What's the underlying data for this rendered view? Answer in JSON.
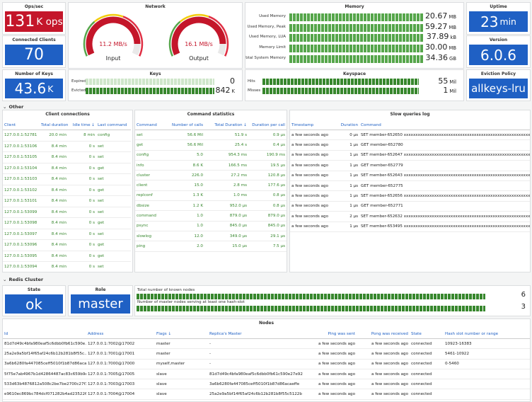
{
  "panels": {
    "ops": {
      "title": "Ops/sec",
      "value": "131",
      "unit": "K ops"
    },
    "clients": {
      "title": "Connected Clients",
      "value": "70"
    },
    "network": {
      "title": "Network",
      "gauges": [
        {
          "value": "11.2 MB/s",
          "label": "Input"
        },
        {
          "value": "16.1 MB/s",
          "label": "Output"
        }
      ]
    },
    "memory": {
      "title": "Memory",
      "rows": [
        {
          "label": "Used Memory",
          "value": "20.67",
          "unit": "MB"
        },
        {
          "label": "Used Memory, Peak",
          "value": "59.27",
          "unit": "MB"
        },
        {
          "label": "Used Memory, LUA",
          "value": "37.89",
          "unit": "kB"
        },
        {
          "label": "Memory Limit",
          "value": "30.00",
          "unit": "MB"
        },
        {
          "label": "Total System Memory",
          "value": "34.36",
          "unit": "GB"
        }
      ]
    },
    "uptime": {
      "title": "Uptime",
      "value": "23",
      "unit": "min"
    },
    "version": {
      "title": "Version",
      "value": "6.0.6"
    },
    "keys_count": {
      "title": "Number of Keys",
      "value": "43.6",
      "unit": "K"
    },
    "keys": {
      "title": "Keys",
      "rows": [
        {
          "label": "Expired",
          "value": "0"
        },
        {
          "label": "Evicted",
          "value": "842",
          "unit": "K"
        }
      ]
    },
    "keyspace": {
      "title": "Keyspace",
      "rows": [
        {
          "label": "Hits",
          "value": "55",
          "unit": "Mil"
        },
        {
          "label": "Misses",
          "value": "1",
          "unit": "Mil"
        }
      ]
    },
    "eviction": {
      "title": "Eviction Policy",
      "value": "allkeys-lru"
    },
    "state": {
      "title": "State",
      "value": "ok"
    },
    "role": {
      "title": "Role",
      "value": "master"
    },
    "cluster": {
      "rows": [
        {
          "label": "Total number of known nodes",
          "value": "6"
        },
        {
          "label": "Number of master nodes serving at least one hash-slot",
          "value": "3"
        }
      ]
    }
  },
  "sections": [
    "Other",
    "Redis Cluster"
  ],
  "tables": {
    "clients_table": {
      "title": "Client connections",
      "columns": [
        "Client",
        "Total duration",
        "Idle time",
        "Last command"
      ],
      "rows": [
        [
          "127.0.0.1:52781",
          "20.0 min",
          "8 min",
          "config"
        ],
        [
          "127.0.0.1:53106",
          "8.4 min",
          "0 s",
          "set"
        ],
        [
          "127.0.0.1:53105",
          "8.4 min",
          "0 s",
          "set"
        ],
        [
          "127.0.0.1:53104",
          "8.4 min",
          "0 s",
          "get"
        ],
        [
          "127.0.0.1:53103",
          "8.4 min",
          "0 s",
          "set"
        ],
        [
          "127.0.0.1:53102",
          "8.4 min",
          "0 s",
          "get"
        ],
        [
          "127.0.0.1:53101",
          "8.4 min",
          "0 s",
          "set"
        ],
        [
          "127.0.0.1:53099",
          "8.4 min",
          "0 s",
          "set"
        ],
        [
          "127.0.0.1:53098",
          "8.4 min",
          "0 s",
          "get"
        ],
        [
          "127.0.0.1:53097",
          "8.4 min",
          "0 s",
          "set"
        ],
        [
          "127.0.0.1:53096",
          "8.4 min",
          "0 s",
          "get"
        ],
        [
          "127.0.0.1:53095",
          "8.4 min",
          "0 s",
          "get"
        ],
        [
          "127.0.0.1:53094",
          "8.4 min",
          "0 s",
          "set"
        ]
      ]
    },
    "commands_table": {
      "title": "Command statistics",
      "columns": [
        "Command",
        "Number of calls",
        "Total Duration",
        "Duration per call"
      ],
      "rows": [
        [
          "set",
          "56.6 Mil",
          "51.9 s",
          "0.9 µs"
        ],
        [
          "get",
          "56.6 Mil",
          "25.4 s",
          "0.4 µs"
        ],
        [
          "config",
          "5.0",
          "954.3 ms",
          "190.9 ms"
        ],
        [
          "info",
          "8.6 K",
          "166.5 ms",
          "19.5 µs"
        ],
        [
          "cluster",
          "226.0",
          "27.2 ms",
          "120.8 µs"
        ],
        [
          "client",
          "15.0",
          "2.8 ms",
          "177.6 µs"
        ],
        [
          "replconf",
          "1.3 K",
          "1.0 ms",
          "0.8 µs"
        ],
        [
          "dbsize",
          "1.2 K",
          "952.0 µs",
          "0.8 µs"
        ],
        [
          "command",
          "1.0",
          "879.0 µs",
          "879.0 µs"
        ],
        [
          "psync",
          "1.0",
          "845.0 µs",
          "845.0 µs"
        ],
        [
          "slowlog",
          "12.0",
          "349.0 µs",
          "29.1 µs"
        ],
        [
          "ping",
          "2.0",
          "15.0 µs",
          "7.5 µs"
        ]
      ]
    },
    "slowlog_table": {
      "title": "Slow queries log",
      "columns": [
        "Timestamp",
        "Duration",
        "Command"
      ],
      "rows": [
        [
          "a few seconds ago",
          "0 µs",
          "SET member-652650 xxxxxxxxxxxxxxxxxxxxxxxxxxxxxxxxxxxxxxxxxxxxxxxxxxxxxxxxxxxx"
        ],
        [
          "a few seconds ago",
          "1 µs",
          "GET member-652780"
        ],
        [
          "a few seconds ago",
          "1 µs",
          "SET member-652647 xxxxxxxxxxxxxxxxxxxxxxxxxxxxxxxxxxxxxxxxxxxxxxxxxxxxxxxxxxxx"
        ],
        [
          "a few seconds ago",
          "1 µs",
          "GET member-652779"
        ],
        [
          "a few seconds ago",
          "1 µs",
          "SET member-652643 xxxxxxxxxxxxxxxxxxxxxxxxxxxxxxxxxxxxxxxxxxxxxxxxxxxxxxxxxxxx"
        ],
        [
          "a few seconds ago",
          "1 µs",
          "GET member-652775"
        ],
        [
          "a few seconds ago",
          "1 µs",
          "SET member-652656 xxxxxxxxxxxxxxxxxxxxxxxxxxxxxxxxxxxxxxxxxxxxxxxxxxxxxxxxxxxx"
        ],
        [
          "a few seconds ago",
          "1 µs",
          "GET member-652771"
        ],
        [
          "a few seconds ago",
          "2 µs",
          "SET member-652632 xxxxxxxxxxxxxxxxxxxxxxxxxxxxxxxxxxxxxxxxxxxxxxxxxxxxxxxxxxxx"
        ],
        [
          "a few seconds ago",
          "1 µs",
          "SET member-653495 xxxxxxxxxxxxxxxxxxxxxxxxxxxxxxxxxxxxxxxxxxxxxxxxxxxxxxxxxxxx"
        ]
      ]
    },
    "nodes_table": {
      "title": "Nodes",
      "columns": [
        "Id",
        "Address",
        "Flags",
        "Replica's Master",
        "Ping was sent",
        "Pong was received",
        "State",
        "Hash slot number or range"
      ],
      "rows": [
        [
          "81d7d49c4bfa980eaf5c6dbb0fb61c590e...",
          "127.0.0.1:7002@17002",
          "master",
          "-",
          "a few seconds ago",
          "a few seconds ago",
          "connected",
          "10923-16383"
        ],
        [
          "25a2e9a5bf14f65af24c6b12b281b8f55c...",
          "127.0.0.1:7001@17001",
          "master",
          "-",
          "a few seconds ago",
          "a few seconds ago",
          "connected",
          "5461-10922"
        ],
        [
          "3a6b6280fa447085ceff5010f1b87d86aca...",
          "127.0.0.1:7000@17000",
          "myself,master",
          "-",
          "a few seconds ago",
          "a few seconds ago",
          "connected",
          "0-5460"
        ],
        [
          "5f75e7ab4967b1d42864487ac83c659b9ef...",
          "127.0.0.1:7005@17005",
          "slave",
          "81d7d49c4bfa980eaf5c6dbb0fb61c590e27e92",
          "a few seconds ago",
          "a few seconds ago",
          "connected"
        ],
        [
          "533d63b4876812a508c2be7be2700c27f35...",
          "127.0.0.1:7003@17003",
          "slave",
          "3a6b6280fa447085ceff5010f1b87d86acaeffe",
          "a few seconds ago",
          "a few seconds ago",
          "connected"
        ],
        [
          "e9610ec869bc784dcf071282b4ad23522692...",
          "127.0.0.1:7004@17004",
          "slave",
          "25a2e9a5bf14f65af24c6b12b281b8f55c5122b",
          "a few seconds ago",
          "a few seconds ago",
          "connected"
        ]
      ]
    }
  }
}
